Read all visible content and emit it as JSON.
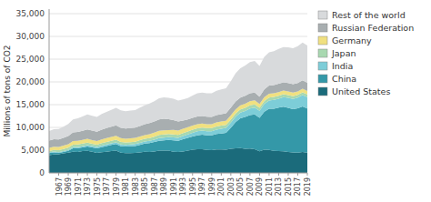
{
  "chart_data": {
    "type": "area",
    "stacked": true,
    "ylabel": "Millions of tons of CO2",
    "x": [
      1965,
      1966,
      1967,
      1968,
      1969,
      1970,
      1971,
      1972,
      1973,
      1974,
      1975,
      1976,
      1977,
      1978,
      1979,
      1980,
      1981,
      1982,
      1983,
      1984,
      1985,
      1986,
      1987,
      1988,
      1989,
      1990,
      1991,
      1992,
      1993,
      1994,
      1995,
      1996,
      1997,
      1998,
      1999,
      2000,
      2001,
      2002,
      2003,
      2004,
      2005,
      2006,
      2007,
      2008,
      2009,
      2010,
      2011,
      2012,
      2013,
      2014,
      2015,
      2016,
      2017,
      2018,
      2019
    ],
    "series": [
      {
        "name": "United States",
        "color": "#1b6b7b",
        "values": [
          3900,
          4050,
          4100,
          4280,
          4460,
          4650,
          4600,
          4780,
          4870,
          4640,
          4380,
          4560,
          4670,
          4780,
          4920,
          4460,
          4350,
          4340,
          4380,
          4510,
          4660,
          4600,
          4720,
          4890,
          4900,
          4910,
          4640,
          4610,
          4720,
          4910,
          5080,
          5210,
          5220,
          5070,
          5010,
          5170,
          5150,
          5100,
          5310,
          5400,
          5470,
          5300,
          5340,
          5220,
          4760,
          5080,
          5040,
          4870,
          4810,
          4730,
          4610,
          4510,
          4470,
          4590,
          4470
        ]
      },
      {
        "name": "China",
        "color": "#3498a8",
        "values": [
          440,
          460,
          290,
          330,
          370,
          750,
          830,
          830,
          940,
          960,
          1030,
          1110,
          1240,
          1360,
          1410,
          1410,
          1430,
          1490,
          1540,
          1660,
          1780,
          1940,
          2060,
          2170,
          2230,
          2330,
          2490,
          2420,
          2680,
          2810,
          2930,
          3060,
          3160,
          3170,
          3220,
          3380,
          3520,
          3710,
          4610,
          5760,
          6530,
          6980,
          7380,
          7640,
          7350,
          8390,
          9060,
          9250,
          9540,
          9840,
          9670,
          9470,
          9730,
          10010,
          9700
        ]
      },
      {
        "name": "India",
        "color": "#7dcdd8",
        "values": [
          160,
          170,
          180,
          200,
          210,
          230,
          240,
          260,
          280,
          290,
          300,
          320,
          340,
          360,
          380,
          370,
          380,
          400,
          420,
          450,
          480,
          510,
          540,
          570,
          610,
          630,
          650,
          690,
          710,
          750,
          810,
          860,
          910,
          920,
          940,
          970,
          1020,
          1070,
          1110,
          1170,
          1230,
          1300,
          1420,
          1490,
          1540,
          1670,
          1810,
          1910,
          1970,
          2100,
          2220,
          2270,
          2330,
          2480,
          2500
        ]
      },
      {
        "name": "Japan",
        "color": "#a8d8b0",
        "values": [
          320,
          370,
          410,
          450,
          510,
          570,
          580,
          560,
          580,
          510,
          480,
          540,
          560,
          550,
          570,
          560,
          550,
          540,
          530,
          560,
          560,
          590,
          630,
          700,
          690,
          660,
          650,
          640,
          630,
          650,
          670,
          680,
          670,
          670,
          660,
          680,
          690,
          680,
          690,
          700,
          720,
          710,
          710,
          690,
          650,
          660,
          660,
          650,
          630,
          610,
          610,
          610,
          610,
          610,
          570
        ]
      },
      {
        "name": "Germany",
        "color": "#f0e080",
        "values": [
          680,
          700,
          700,
          720,
          760,
          810,
          800,
          810,
          810,
          810,
          790,
          820,
          820,
          830,
          860,
          830,
          810,
          810,
          810,
          820,
          840,
          860,
          880,
          900,
          900,
          880,
          1040,
          960,
          940,
          910,
          900,
          910,
          890,
          890,
          880,
          900,
          920,
          900,
          910,
          910,
          910,
          900,
          900,
          890,
          850,
          860,
          820,
          810,
          810,
          810,
          800,
          800,
          780,
          820,
          780
        ]
      },
      {
        "name": "Russian Federation",
        "color": "#a8aeb0",
        "values": [
          1600,
          1640,
          1680,
          1740,
          1810,
          1900,
          1950,
          2010,
          2080,
          2070,
          2080,
          2150,
          2210,
          2280,
          2330,
          2290,
          2240,
          2260,
          2260,
          2310,
          2370,
          2430,
          2480,
          2540,
          2550,
          2380,
          2120,
          1970,
          1840,
          1720,
          1720,
          1700,
          1650,
          1620,
          1610,
          1620,
          1610,
          1640,
          1730,
          1740,
          1710,
          1740,
          1750,
          1730,
          1610,
          1690,
          1800,
          1790,
          1820,
          1830,
          1820,
          1820,
          1840,
          1840,
          1800
        ]
      },
      {
        "name": "Rest of the world",
        "color": "#d8dadc",
        "values": [
          2100,
          2200,
          2300,
          2450,
          2620,
          2850,
          3010,
          3160,
          3290,
          3270,
          3220,
          3450,
          3560,
          3680,
          3830,
          3810,
          3770,
          3840,
          3870,
          4020,
          4180,
          4330,
          4450,
          4630,
          4700,
          4730,
          4720,
          4620,
          4630,
          4710,
          4890,
          5070,
          5160,
          5170,
          5170,
          5340,
          5430,
          5520,
          5780,
          6230,
          6410,
          6680,
          6850,
          6950,
          6760,
          7130,
          7300,
          7490,
          7660,
          7750,
          7850,
          7940,
          8110,
          8290,
          8200
        ]
      }
    ],
    "xlim": [
      1965,
      2019
    ],
    "xticks": [
      1967,
      1969,
      1971,
      1973,
      1975,
      1977,
      1979,
      1981,
      1983,
      1985,
      1987,
      1989,
      1991,
      1993,
      1995,
      1997,
      1999,
      2001,
      2003,
      2005,
      2007,
      2009,
      2011,
      2013,
      2015,
      2017,
      2019
    ],
    "ylim": [
      0,
      36000
    ],
    "yticks": [
      0,
      {
        "value": 5000,
        "label": "5,000"
      },
      {
        "value": 10000,
        "label": "10,000"
      },
      {
        "value": 15000,
        "label": "15,000"
      },
      {
        "value": 20000,
        "label": "20,000"
      },
      {
        "value": 25000,
        "label": "25,000"
      },
      {
        "value": 30000,
        "label": "30,000"
      },
      {
        "value": 35000,
        "label": "35,000"
      }
    ],
    "grid": true,
    "legend": "right"
  }
}
